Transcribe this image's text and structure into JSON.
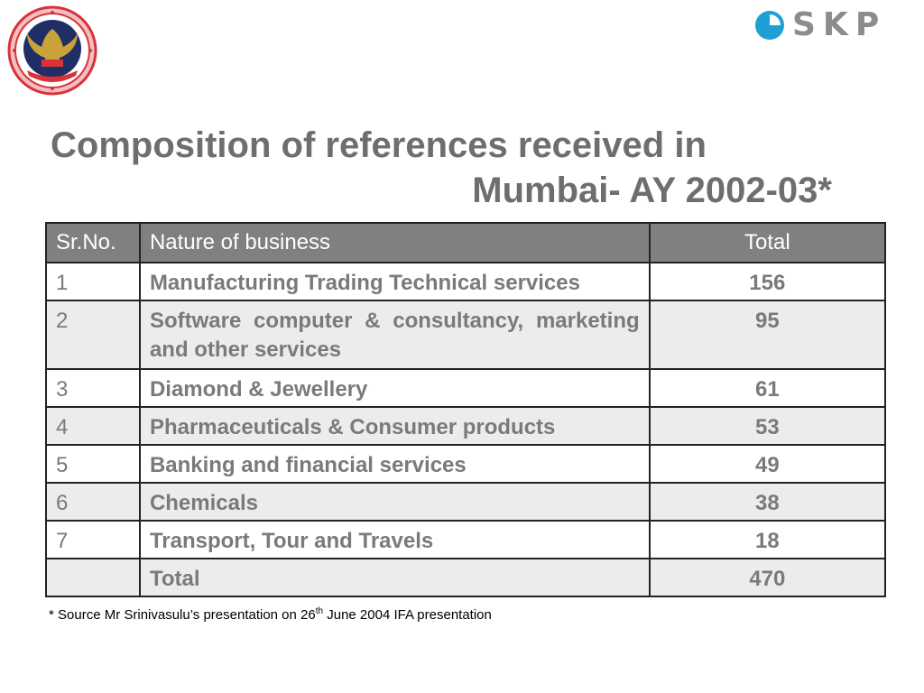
{
  "title": {
    "line1": "Composition of references received in",
    "line2": "Mumbai- AY 2002-03*"
  },
  "logo_left": {
    "icon": "institute-emblem-seal-icon",
    "colors": {
      "ring": "#d9323a",
      "inner": "#1f2f66",
      "eagle": "#c9a23a"
    }
  },
  "logo_right": {
    "text": "SKP",
    "icon": "skp-circle-icon",
    "colors": {
      "circle": "#1e9fd6",
      "text": "#8c8c8c"
    }
  },
  "table": {
    "headers": {
      "no": "Sr.No.",
      "nature": "Nature of business",
      "total": "Total"
    },
    "rows": [
      {
        "no": "1",
        "nature": "Manufacturing Trading Technical services",
        "total": "156"
      },
      {
        "no": "2",
        "nature": "Software computer & consultancy, marketing and other services",
        "total": "95"
      },
      {
        "no": "3",
        "nature": "Diamond & Jewellery",
        "total": "61"
      },
      {
        "no": "4",
        "nature": "Pharmaceuticals & Consumer products",
        "total": "53"
      },
      {
        "no": "5",
        "nature": "Banking and financial services",
        "total": "49"
      },
      {
        "no": "6",
        "nature": "Chemicals",
        "total": "38"
      },
      {
        "no": "7",
        "nature": "Transport, Tour and Travels",
        "total": "18"
      }
    ],
    "total_row": {
      "no": "",
      "nature": "Total",
      "total": "470"
    },
    "colors": {
      "header_bg": "#808080",
      "alt_row_bg": "#ececec",
      "text": "#7a7a7a"
    }
  },
  "footnote": {
    "before": "* Source Mr Srinivasulu’s presentation on 26",
    "sup": "th",
    "after": " June 2004 IFA presentation"
  }
}
